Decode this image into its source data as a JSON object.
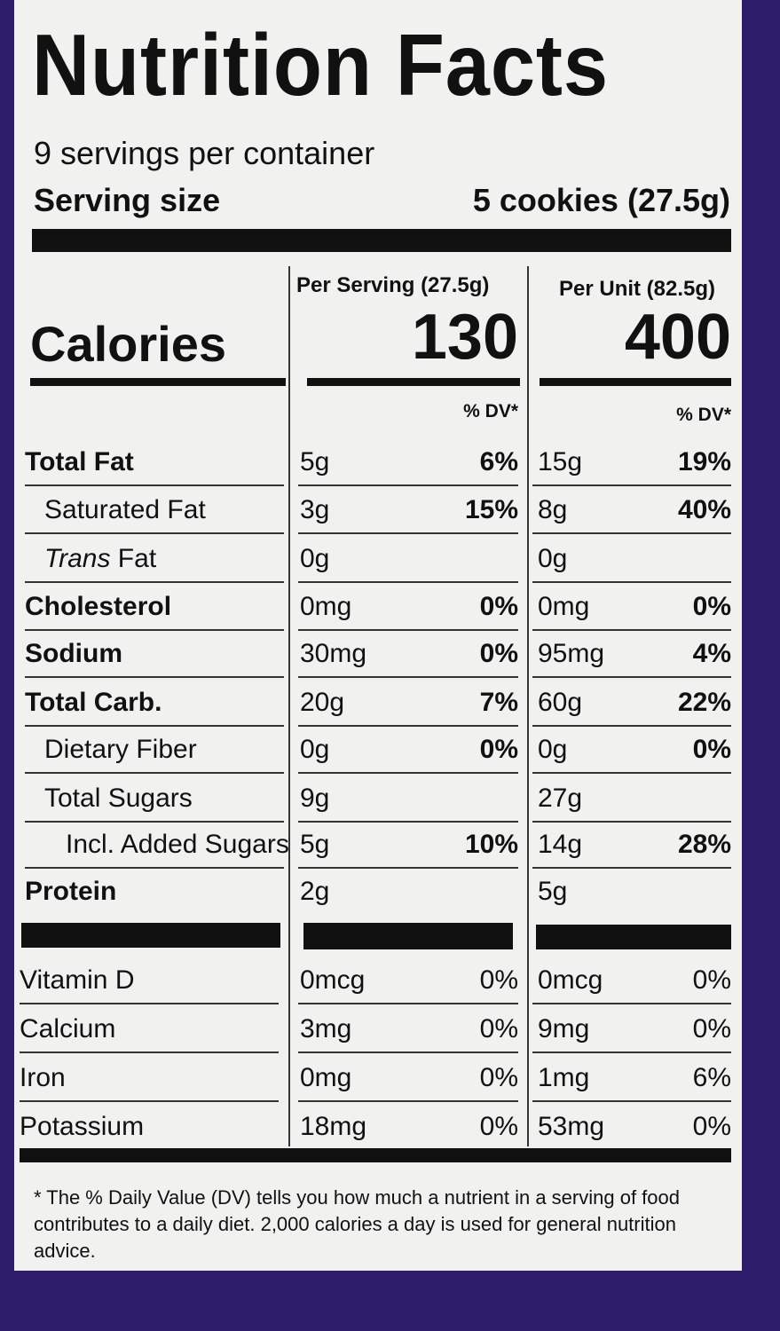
{
  "title": "Nutrition Facts",
  "servings_per_container": "9 servings per container",
  "serving_size_label": "Serving size",
  "serving_size_value": "5 cookies (27.5g)",
  "calories_label": "Calories",
  "col1_header": "Per Serving (27.5g)",
  "col2_header": "Per Unit (82.5g)",
  "calories_serving": "130",
  "calories_unit": "400",
  "dv_header": "% DV*",
  "nutrients": [
    {
      "name": "Total Fat",
      "bold": true,
      "indent": 0,
      "s_amt": "5g",
      "s_dv": "6%",
      "u_amt": "15g",
      "u_dv": "19%"
    },
    {
      "name": "Saturated Fat",
      "bold": false,
      "indent": 1,
      "s_amt": "3g",
      "s_dv": "15%",
      "u_amt": "8g",
      "u_dv": "40%"
    },
    {
      "name": "Trans Fat",
      "bold": false,
      "indent": 1,
      "italic_prefix": "Trans",
      "s_amt": "0g",
      "s_dv": "",
      "u_amt": "0g",
      "u_dv": ""
    },
    {
      "name": "Cholesterol",
      "bold": true,
      "indent": 0,
      "s_amt": "0mg",
      "s_dv": "0%",
      "u_amt": "0mg",
      "u_dv": "0%"
    },
    {
      "name": "Sodium",
      "bold": true,
      "indent": 0,
      "s_amt": "30mg",
      "s_dv": "0%",
      "u_amt": "95mg",
      "u_dv": "4%"
    },
    {
      "name": "Total Carb.",
      "bold": true,
      "indent": 0,
      "s_amt": "20g",
      "s_dv": "7%",
      "u_amt": "60g",
      "u_dv": "22%"
    },
    {
      "name": "Dietary Fiber",
      "bold": false,
      "indent": 1,
      "s_amt": "0g",
      "s_dv": "0%",
      "u_amt": "0g",
      "u_dv": "0%"
    },
    {
      "name": "Total Sugars",
      "bold": false,
      "indent": 1,
      "s_amt": "9g",
      "s_dv": "",
      "u_amt": "27g",
      "u_dv": ""
    },
    {
      "name": "Incl. Added Sugars",
      "bold": false,
      "indent": 2,
      "s_amt": "5g",
      "s_dv": "10%",
      "u_amt": "14g",
      "u_dv": "28%"
    },
    {
      "name": "Protein",
      "bold": true,
      "indent": 0,
      "s_amt": "2g",
      "s_dv": "",
      "u_amt": "5g",
      "u_dv": ""
    }
  ],
  "vitamins": [
    {
      "name": "Vitamin D",
      "s_amt": "0mcg",
      "s_dv": "0%",
      "u_amt": "0mcg",
      "u_dv": "0%"
    },
    {
      "name": "Calcium",
      "s_amt": "3mg",
      "s_dv": "0%",
      "u_amt": "9mg",
      "u_dv": "0%"
    },
    {
      "name": "Iron",
      "s_amt": "0mg",
      "s_dv": "0%",
      "u_amt": "1mg",
      "u_dv": "6%"
    },
    {
      "name": "Potassium",
      "s_amt": "18mg",
      "s_dv": "0%",
      "u_amt": "53mg",
      "u_dv": "0%"
    }
  ],
  "footnote": "* The % Daily Value (DV) tells you how much a nutrient in a serving of food contributes to a daily diet. 2,000 calories a day is used for general nutrition advice."
}
